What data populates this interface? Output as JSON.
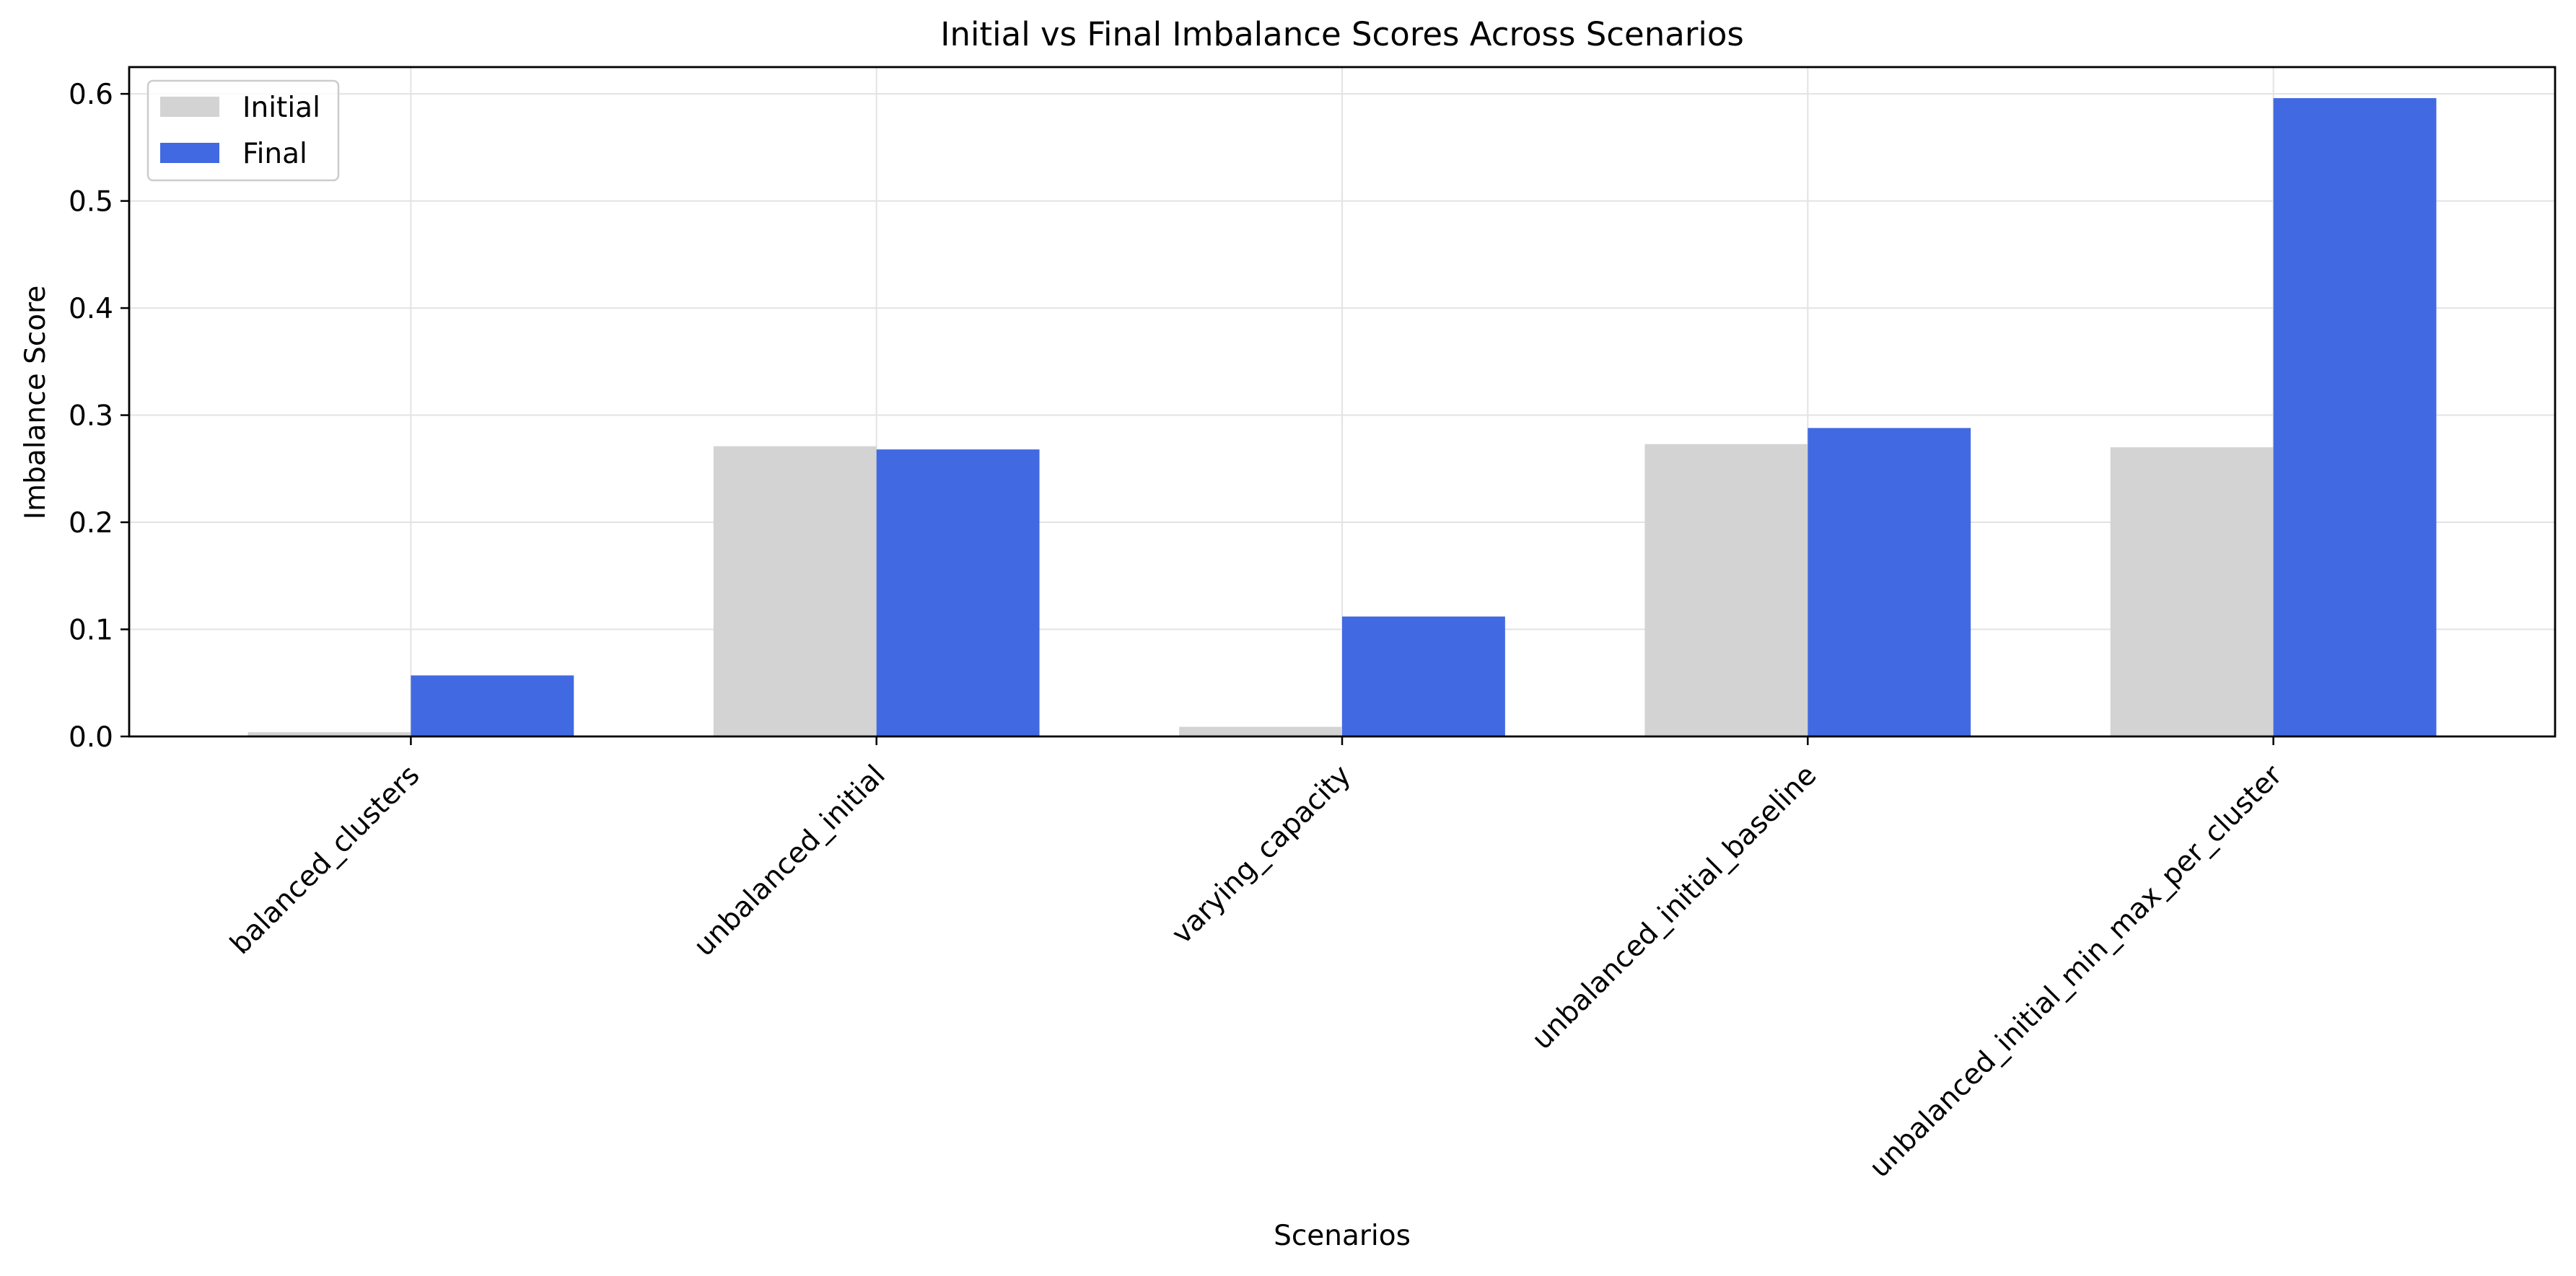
{
  "chart_data": {
    "type": "bar",
    "title": "Initial vs Final Imbalance Scores Across Scenarios",
    "xlabel": "Scenarios",
    "ylabel": "Imbalance Score",
    "categories": [
      "balanced_clusters",
      "unbalanced_initial",
      "varying_capacity",
      "unbalanced_initial_baseline",
      "unbalanced_initial_min_max_per_cluster"
    ],
    "series": [
      {
        "name": "Initial",
        "color": "#d3d3d3",
        "values": [
          0.004,
          0.271,
          0.009,
          0.273,
          0.27
        ]
      },
      {
        "name": "Final",
        "color": "#4169e1",
        "values": [
          0.057,
          0.268,
          0.112,
          0.288,
          0.596
        ]
      }
    ],
    "ylim": [
      0,
      0.625
    ],
    "yticks": [
      0.0,
      0.1,
      0.2,
      0.3,
      0.4,
      0.5,
      0.6
    ],
    "ytick_labels": [
      "0.0",
      "0.1",
      "0.2",
      "0.3",
      "0.4",
      "0.5",
      "0.6"
    ],
    "grid": true,
    "legend_position": "top-left"
  }
}
